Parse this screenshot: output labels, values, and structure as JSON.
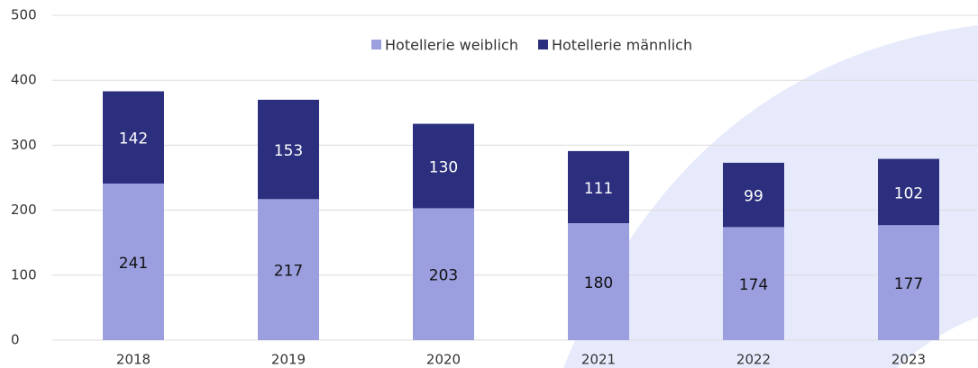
{
  "chart_data": {
    "type": "stacked_bar",
    "categories": [
      "2018",
      "2019",
      "2020",
      "2021",
      "2022",
      "2023"
    ],
    "series": [
      {
        "name": "Hotellerie weiblich",
        "color": "#9b9fdf",
        "values": [
          241,
          217,
          203,
          180,
          174,
          177
        ]
      },
      {
        "name": "Hotellerie männlich",
        "color": "#2b2f7e",
        "values": [
          142,
          153,
          130,
          111,
          99,
          102
        ]
      }
    ],
    "ylim": [
      0,
      500
    ],
    "yticks": [
      0,
      100,
      200,
      300,
      400,
      500
    ],
    "grid": true
  }
}
